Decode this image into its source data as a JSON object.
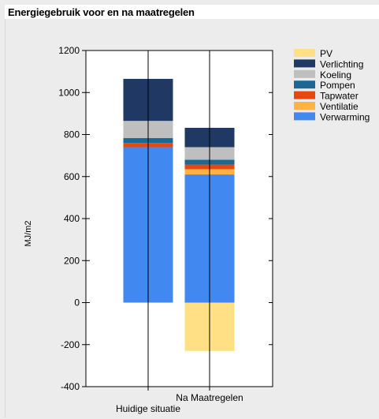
{
  "window": {
    "title": "Energiegebruik voor en na maatregelen"
  },
  "colors": {
    "background": "#ececec",
    "PV": "#ffe084",
    "Verlichting": "#1f3864",
    "Koeling": "#bfbfbf",
    "Pompen": "#1a6994",
    "Tapwater": "#e8470d",
    "Ventilatie": "#ffb340",
    "Verwarming": "#4189f0"
  },
  "chart_data": {
    "type": "bar",
    "stacked": true,
    "title": "Energiegebruik voor en na maatregelen",
    "xlabel": "",
    "ylabel": "MJ/m2",
    "ylim": [
      -400,
      1200
    ],
    "yticks": [
      1200,
      1000,
      800,
      600,
      400,
      200,
      0,
      -200,
      -400
    ],
    "grid": false,
    "legend_position": "top-right",
    "categories": [
      "Huidige situatie",
      "Na Maatregelen"
    ],
    "series": [
      {
        "name": "Verwarming",
        "values": [
          740,
          610
        ]
      },
      {
        "name": "Ventilatie",
        "values": [
          0,
          25
        ]
      },
      {
        "name": "Tapwater",
        "values": [
          20,
          22
        ]
      },
      {
        "name": "Pompen",
        "values": [
          23,
          23
        ]
      },
      {
        "name": "Koeling",
        "values": [
          82,
          60
        ]
      },
      {
        "name": "Verlichting",
        "values": [
          200,
          92
        ]
      },
      {
        "name": "PV",
        "values": [
          0,
          -230
        ]
      }
    ],
    "legend_order": [
      "PV",
      "Verlichting",
      "Koeling",
      "Pompen",
      "Tapwater",
      "Ventilatie",
      "Verwarming"
    ]
  }
}
